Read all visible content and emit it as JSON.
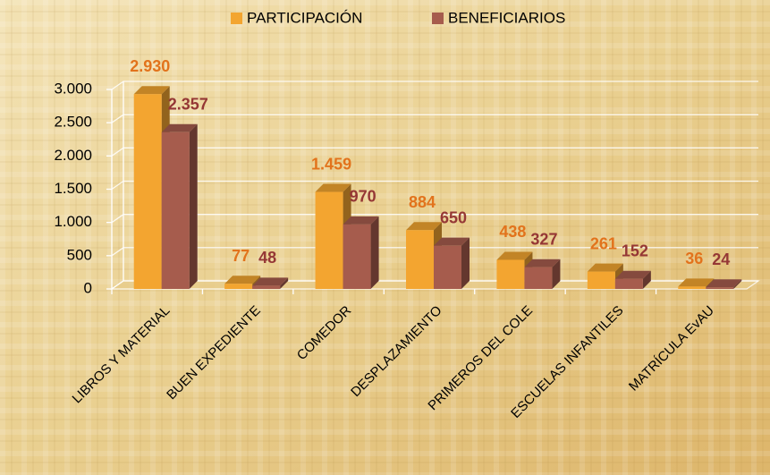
{
  "chart_data": {
    "type": "bar3d",
    "categories": [
      "LIBROS Y MATERIAL",
      "BUEN EXPEDIENTE",
      "COMEDOR",
      "DESPLAZAMIENTO",
      "PRIMEROS DEL COLE",
      "ESCUELAS INFANTILES",
      "MATRÍCULA EvAU"
    ],
    "series": [
      {
        "name": "PARTICIPACIÓN",
        "color": "#f3a530",
        "label_color": "#e2731c",
        "values": [
          2930,
          77,
          1459,
          884,
          438,
          261,
          36
        ],
        "value_labels": [
          "2.930",
          "77",
          "1.459",
          "884",
          "438",
          "261",
          "36"
        ]
      },
      {
        "name": "BENEFICIARIOS",
        "color": "#a65c4d",
        "label_color": "#953735",
        "values": [
          2357,
          48,
          970,
          650,
          327,
          152,
          24
        ],
        "value_labels": [
          "2.357",
          "48",
          "970",
          "650",
          "327",
          "152",
          "24"
        ]
      }
    ],
    "ylim": [
      0,
      3000
    ],
    "yticks": [
      0,
      500,
      {
        "value": 1000,
        "label": "1.000"
      },
      {
        "value": 1500,
        "label": "1.500"
      },
      {
        "value": 2000,
        "label": "2.000"
      },
      {
        "value": 2500,
        "label": "2.500"
      },
      {
        "value": 3000,
        "label": "3.000"
      }
    ],
    "grid": true,
    "legend": "top"
  }
}
